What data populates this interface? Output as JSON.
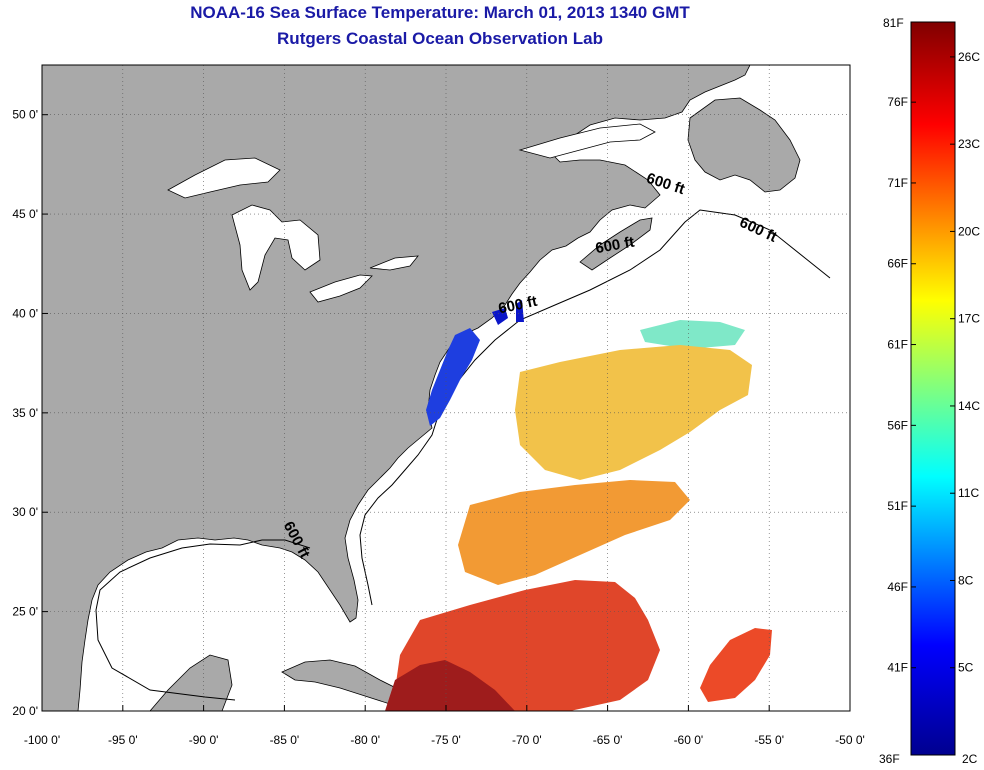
{
  "title": "NOAA-16 Sea Surface Temperature:  March 01, 2013 1340 GMT",
  "subtitle": "Rutgers Coastal Ocean Observation Lab",
  "map": {
    "lon_range": [
      -100,
      -50
    ],
    "lat_range": [
      20,
      52.5
    ],
    "lon_ticks": [
      -100,
      -95,
      -90,
      -85,
      -80,
      -75,
      -70,
      -65,
      -60,
      -55,
      -50
    ],
    "lat_ticks": [
      20,
      25,
      30,
      35,
      40,
      45,
      50
    ],
    "lon_tick_labels": [
      "-100 0'",
      "-95 0'",
      "-90 0'",
      "-85 0'",
      "-80 0'",
      "-75 0'",
      "-70 0'",
      "-65 0'",
      "-60 0'",
      "-55 0'",
      "-50 0'"
    ],
    "lat_tick_labels": [
      "20 0'",
      "25 0'",
      "30 0'",
      "35 0'",
      "40 0'",
      "45 0'",
      "50 0'"
    ],
    "grid": "dotted",
    "land_color": "#a9a9a9",
    "ocean_color": "#ffffff",
    "contour_labels": [
      {
        "text": "600 ft",
        "lon": -61.5,
        "lat": 46.3,
        "rot": 18
      },
      {
        "text": "600 ft",
        "lon": -55.8,
        "lat": 44.0,
        "rot": 25
      },
      {
        "text": "600 ft",
        "lon": -64.5,
        "lat": 43.2,
        "rot": -10
      },
      {
        "text": "600 ft",
        "lon": -70.5,
        "lat": 40.2,
        "rot": -12
      },
      {
        "text": "600 ft",
        "lon": -84.5,
        "lat": 28.5,
        "rot": 62
      }
    ]
  },
  "colorbar": {
    "label_top": "81F",
    "label_bottom_f": "36F",
    "label_bottom_c": "2C",
    "f_labels": [
      "76F",
      "71F",
      "66F",
      "61F",
      "56F",
      "51F",
      "46F",
      "41F"
    ],
    "c_labels": [
      "26C",
      "23C",
      "20C",
      "17C",
      "14C",
      "11C",
      "8C",
      "5C"
    ],
    "range_c": [
      2,
      27.2
    ],
    "colors": [
      "#00008f",
      "#0000ff",
      "#00ffff",
      "#ffff00",
      "#ff0000",
      "#800000"
    ]
  }
}
